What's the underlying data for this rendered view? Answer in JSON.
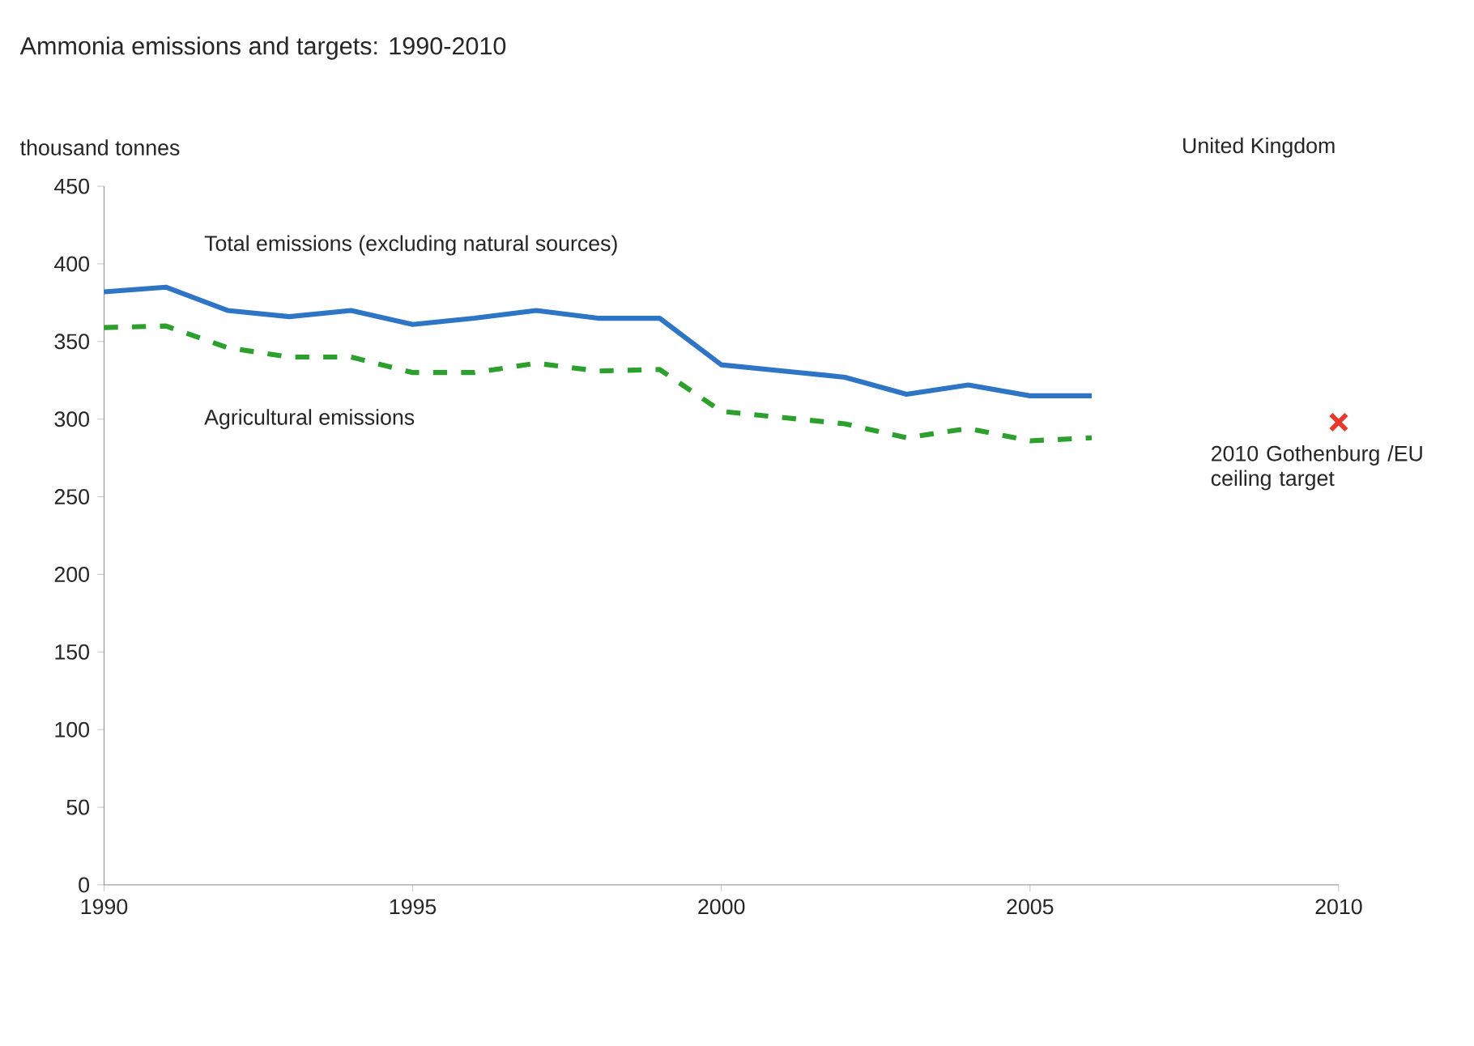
{
  "chart_data": {
    "type": "line",
    "title": "Ammonia emissions and targets: 1990-2010",
    "subtitle": "United Kingdom",
    "ylabel": "thousand tonnes",
    "x": [
      1990,
      1991,
      1992,
      1993,
      1994,
      1995,
      1996,
      1997,
      1998,
      1999,
      2000,
      2001,
      2002,
      2003,
      2004,
      2005,
      2006
    ],
    "series": [
      {
        "name": "Total emissions (excluding natural sources)",
        "color": "#2e75c6",
        "line_style": "solid",
        "values": [
          382,
          385,
          370,
          366,
          370,
          361,
          365,
          370,
          365,
          365,
          335,
          331,
          327,
          316,
          322,
          315,
          315
        ]
      },
      {
        "name": "Agricultural emissions",
        "color": "#2ca02c",
        "line_style": "dashed",
        "values": [
          359,
          360,
          346,
          340,
          340,
          330,
          330,
          336,
          331,
          332,
          305,
          301,
          297,
          288,
          294,
          286,
          288
        ]
      },
      {
        "name": "2010 Gothenburg /EU ceiling target",
        "type": "scatter",
        "marker": "cross",
        "color": "#e8392c",
        "x": [
          2010
        ],
        "values": [
          298
        ]
      }
    ],
    "xlim": [
      1990,
      2010
    ],
    "xticks": [
      1990,
      1995,
      2000,
      2005,
      2010
    ],
    "ylim": [
      0,
      450
    ],
    "yticks": [
      0,
      50,
      100,
      150,
      200,
      250,
      300,
      350,
      400,
      450
    ],
    "grid": false,
    "legend": false
  }
}
